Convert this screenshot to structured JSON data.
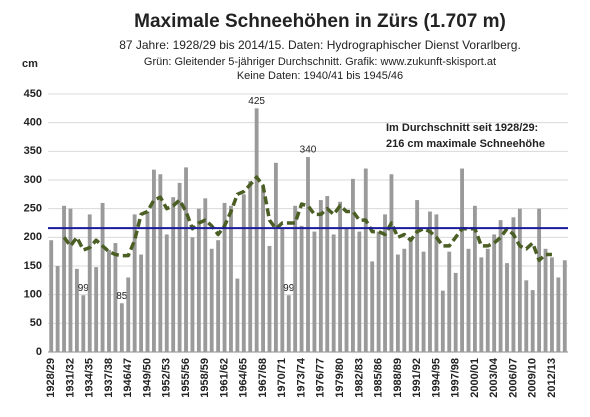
{
  "chart_data": {
    "type": "bar",
    "title": "Maximale Schneehöhen in Zürs (1.707 m)",
    "subtitle": [
      "87 Jahre: 1928/29 bis 2014/15. Daten: Hydrographischer Dienst Vorarlberg.",
      "Grün: Gleitender 5-jähriger Durchschnitt. Grafik: www.zukunft-skisport.at",
      "Keine Daten: 1940/41 bis 1945/46"
    ],
    "y_label": "cm",
    "categories": [
      "1928/29",
      null,
      null,
      "1931/32",
      null,
      null,
      "1934/35",
      null,
      null,
      "1937/38",
      null,
      null,
      "1946/47",
      null,
      null,
      "1949/50",
      null,
      null,
      "1952/53",
      null,
      null,
      "1955/56",
      null,
      null,
      "1958/59",
      null,
      null,
      "1961/62",
      null,
      null,
      "1964/65",
      null,
      null,
      "1967/68",
      null,
      null,
      "1970/71",
      null,
      null,
      "1973/74",
      null,
      null,
      "1976/77",
      null,
      null,
      "1979/80",
      null,
      null,
      "1982/83",
      null,
      null,
      "1985/86",
      null,
      null,
      "1988/89",
      null,
      null,
      "1991/92",
      null,
      null,
      "1994/95",
      null,
      null,
      "1997/98",
      null,
      null,
      "2000/01",
      null,
      null,
      "2003/04",
      null,
      null,
      "2006/07",
      null,
      null,
      "2009/10",
      null,
      null,
      "2012/13",
      null,
      null
    ],
    "series": [
      {
        "color": "#9a9a9a",
        "values": [
          195,
          150,
          255,
          250,
          145,
          99,
          240,
          148,
          260,
          178,
          190,
          85,
          130,
          240,
          170,
          245,
          318,
          310,
          205,
          270,
          295,
          322,
          200,
          250,
          268,
          180,
          195,
          260,
          255,
          128,
          275,
          298,
          425,
          290,
          185,
          330,
          215,
          99,
          255,
          220,
          340,
          210,
          265,
          272,
          205,
          262,
          215,
          302,
          210,
          320,
          158,
          210,
          240,
          310,
          170,
          180,
          200,
          265,
          175,
          245,
          240,
          107,
          175,
          138,
          320,
          180,
          255,
          165,
          180,
          205,
          230,
          155,
          235,
          250,
          125,
          108,
          250,
          180,
          165,
          130,
          160
        ],
        "value_labels": [
          null,
          null,
          null,
          null,
          null,
          "99",
          null,
          null,
          null,
          null,
          null,
          "85",
          null,
          null,
          null,
          null,
          null,
          null,
          null,
          null,
          null,
          null,
          null,
          null,
          null,
          null,
          null,
          null,
          null,
          null,
          null,
          null,
          "425",
          null,
          null,
          null,
          null,
          "99",
          null,
          null,
          "340",
          null,
          null,
          null,
          null,
          null,
          null,
          null,
          null,
          null,
          null,
          null,
          null,
          null,
          null,
          null,
          null,
          null,
          null,
          null,
          null,
          null,
          null,
          null,
          null,
          null,
          null,
          null,
          null,
          null,
          null,
          null,
          null,
          null,
          null,
          null,
          null,
          null,
          null,
          null,
          null
        ]
      },
      {
        "type": "line",
        "color": "#4b5e24",
        "dashed": true,
        "values": [
          null,
          null,
          200,
          185,
          200,
          178,
          182,
          195,
          185,
          175,
          170,
          168,
          168,
          195,
          240,
          245,
          265,
          270,
          250,
          255,
          265,
          245,
          215,
          225,
          230,
          220,
          205,
          220,
          245,
          275,
          280,
          292,
          305,
          290,
          230,
          215,
          225,
          225,
          225,
          258,
          255,
          240,
          240,
          250,
          240,
          255,
          245,
          245,
          230,
          230,
          210,
          210,
          205,
          225,
          200,
          205,
          195,
          210,
          215,
          210,
          200,
          185,
          185,
          200,
          215,
          215,
          215,
          185,
          185,
          190,
          200,
          215,
          205,
          185,
          180,
          190,
          160,
          170,
          170,
          null,
          null
        ]
      }
    ],
    "reference_line": {
      "value": 216,
      "color": "#1a1a9c",
      "label": [
        "Im Durchschnitt seit 1928/29:",
        "216 cm maximale Schneehöhe"
      ]
    },
    "ylim": [
      0,
      450
    ],
    "yticks": [
      0,
      50,
      100,
      150,
      200,
      250,
      300,
      350,
      400,
      450
    ],
    "grid": true
  }
}
